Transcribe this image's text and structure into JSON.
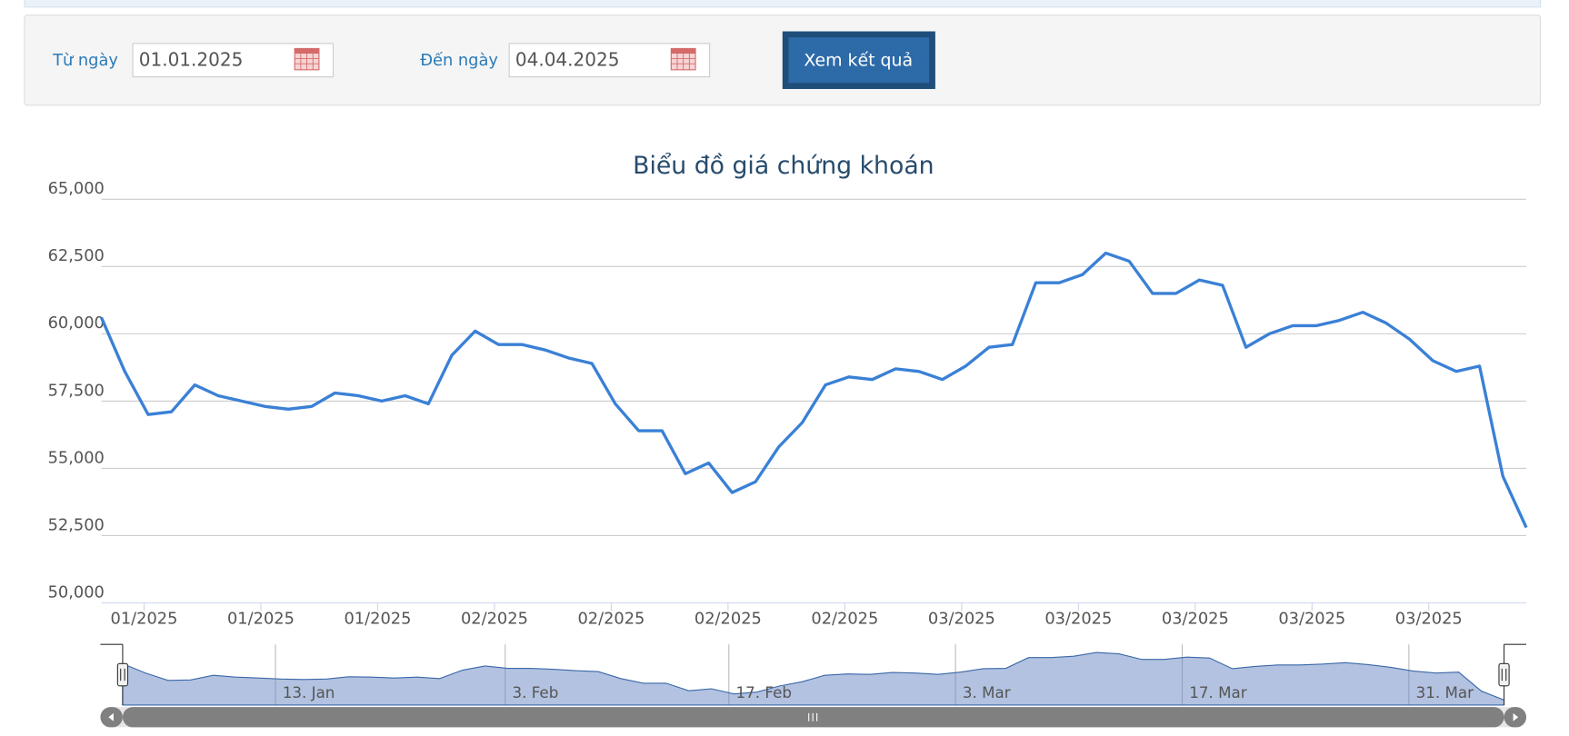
{
  "form": {
    "from_label": "Từ ngày",
    "from_value": "01.01.2025",
    "to_label": "Đến ngày",
    "to_value": "04.04.2025",
    "button": "Xem kết quả"
  },
  "chart_data": {
    "type": "line",
    "title": "Biểu đồ giá chứng khoán",
    "categories": [
      null,
      null,
      "01/2025",
      null,
      null,
      null,
      null,
      "01/2025",
      null,
      null,
      null,
      null,
      "01/2025",
      null,
      null,
      null,
      null,
      "02/2025",
      null,
      null,
      null,
      null,
      "02/2025",
      null,
      null,
      null,
      null,
      "02/2025",
      null,
      null,
      null,
      null,
      "02/2025",
      null,
      null,
      null,
      null,
      "03/2025",
      null,
      null,
      null,
      null,
      "03/2025",
      null,
      null,
      null,
      null,
      "03/2025",
      null,
      null,
      null,
      null,
      "03/2025",
      null,
      null,
      null,
      null,
      "03/2025",
      null,
      null,
      null,
      null
    ],
    "values": [
      60600,
      58600,
      57000,
      57100,
      58100,
      57700,
      57500,
      57300,
      57200,
      57300,
      57800,
      57700,
      57500,
      57700,
      57400,
      59200,
      60100,
      59600,
      59600,
      59400,
      59100,
      58900,
      57400,
      56400,
      56400,
      54800,
      55200,
      54100,
      54500,
      55800,
      56700,
      58100,
      58400,
      58300,
      58700,
      58600,
      58300,
      58800,
      59500,
      59600,
      61900,
      61900,
      62200,
      63000,
      62700,
      61500,
      61500,
      62000,
      61800,
      59500,
      60000,
      60300,
      60300,
      60500,
      60800,
      60400,
      59800,
      59000,
      58600,
      58800,
      54700,
      52800
    ],
    "color": "#3a80d6",
    "ylim": [
      50000,
      65000
    ],
    "yticks": [
      {
        "value": 50000,
        "label": "50,000"
      },
      {
        "value": 52500,
        "label": "52,500"
      },
      {
        "value": 55000,
        "label": "55,000"
      },
      {
        "value": 57500,
        "label": "57,500"
      },
      {
        "value": 60000,
        "label": "60,000"
      },
      {
        "value": 62500,
        "label": "62,500"
      },
      {
        "value": 65000,
        "label": "65,000"
      }
    ],
    "grid": true,
    "navigator_labels": [
      "13. Jan",
      "3. Feb",
      "17. Feb",
      "3. Mar",
      "17. Mar",
      "31. Mar"
    ]
  }
}
